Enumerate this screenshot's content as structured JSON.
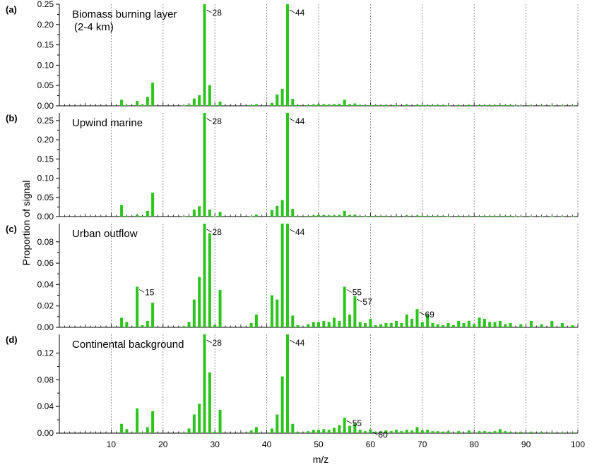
{
  "figure": {
    "xlabel": "m/z",
    "ylabel": "Proportion of signal",
    "bar_color": "#2ec41e",
    "x_ticks": [
      "10",
      "20",
      "30",
      "40",
      "50",
      "60",
      "70",
      "80",
      "90",
      "100"
    ]
  },
  "chart_data": [
    {
      "type": "bar",
      "panel_label": "(a)",
      "title_lines": [
        "Biomass burning layer",
        "(2-4 km)"
      ],
      "xlim": [
        0,
        100
      ],
      "ylim": [
        0,
        0.25
      ],
      "y_ticks": [
        "0.00",
        "0.05",
        "0.10",
        "0.15",
        "0.20",
        "0.25"
      ],
      "y_tick_values": [
        0,
        0.05,
        0.1,
        0.15,
        0.2,
        0.25
      ],
      "annotations": [
        {
          "mz": 28,
          "text": "28"
        },
        {
          "mz": 44,
          "text": "44"
        }
      ],
      "series": [
        {
          "mz": [
            12,
            13,
            15,
            16,
            17,
            18,
            24,
            25,
            26,
            27,
            28,
            29,
            30,
            31,
            37,
            38,
            41,
            42,
            43,
            44,
            45,
            46,
            48,
            49,
            50,
            51,
            52,
            53,
            54,
            55,
            56,
            57,
            58,
            59,
            60,
            61,
            62,
            63,
            65,
            67,
            69,
            70,
            71,
            72,
            73,
            74,
            75,
            77,
            79,
            81,
            82,
            83,
            84,
            85,
            86,
            87,
            88,
            89,
            91,
            93,
            95,
            97,
            99
          ],
          "values": [
            0.015,
            0.002,
            0.012,
            0.003,
            0.022,
            0.057,
            0.001,
            0.003,
            0.018,
            0.026,
            0.26,
            0.051,
            0.002,
            0.01,
            0.002,
            0.004,
            0.007,
            0.028,
            0.042,
            0.26,
            0.017,
            0.002,
            0.002,
            0.003,
            0.004,
            0.004,
            0.003,
            0.004,
            0.005,
            0.015,
            0.004,
            0.006,
            0.002,
            0.002,
            0.002,
            0.002,
            0.002,
            0.002,
            0.002,
            0.003,
            0.003,
            0.002,
            0.002,
            0.002,
            0.002,
            0.002,
            0.001,
            0.002,
            0.002,
            0.002,
            0.002,
            0.002,
            0.002,
            0.002,
            0.002,
            0.002,
            0.001,
            0.001,
            0.001,
            0.001,
            0.001,
            0.001,
            0.001
          ]
        }
      ]
    },
    {
      "type": "bar",
      "panel_label": "(b)",
      "title_lines": [
        "Upwind marine"
      ],
      "xlim": [
        0,
        100
      ],
      "ylim": [
        0,
        0.27
      ],
      "y_ticks": [
        "0.00",
        "0.05",
        "0.10",
        "0.15",
        "0.20",
        "0.25"
      ],
      "y_tick_values": [
        0,
        0.05,
        0.1,
        0.15,
        0.2,
        0.25
      ],
      "annotations": [
        {
          "mz": 28,
          "text": "28"
        },
        {
          "mz": 44,
          "text": "44"
        }
      ],
      "series": [
        {
          "mz": [
            12,
            13,
            15,
            16,
            17,
            18,
            24,
            25,
            26,
            27,
            28,
            29,
            30,
            31,
            37,
            38,
            41,
            42,
            43,
            44,
            45,
            46,
            48,
            49,
            50,
            51,
            52,
            53,
            54,
            55,
            56,
            57,
            58,
            59,
            60,
            61,
            62,
            63,
            65,
            67,
            69,
            70,
            71,
            72,
            73,
            74,
            75,
            77,
            79,
            81,
            82,
            83,
            84,
            85,
            86,
            87,
            88,
            89,
            91,
            93,
            95,
            97,
            99
          ],
          "values": [
            0.03,
            0.002,
            0.004,
            0.002,
            0.015,
            0.062,
            0.001,
            0.002,
            0.018,
            0.027,
            0.28,
            0.018,
            0.001,
            0.012,
            0.001,
            0.005,
            0.017,
            0.028,
            0.043,
            0.28,
            0.02,
            0.002,
            0.002,
            0.003,
            0.004,
            0.004,
            0.003,
            0.003,
            0.004,
            0.015,
            0.004,
            0.005,
            0.002,
            0.001,
            0.002,
            0.002,
            0.002,
            0.002,
            0.002,
            0.003,
            0.003,
            0.002,
            0.002,
            0.002,
            0.002,
            0.002,
            0.001,
            0.002,
            0.002,
            0.002,
            0.002,
            0.002,
            0.002,
            0.002,
            0.002,
            0.002,
            0.001,
            0.001,
            0.001,
            0.001,
            0.001,
            0.001,
            0.001
          ]
        }
      ]
    },
    {
      "type": "bar",
      "panel_label": "(c)",
      "title_lines": [
        "Urban outflow"
      ],
      "xlim": [
        0,
        100
      ],
      "ylim": [
        0,
        0.097
      ],
      "y_ticks": [
        "0.00",
        "0.02",
        "0.04",
        "0.06",
        "0.08"
      ],
      "y_tick_values": [
        0,
        0.02,
        0.04,
        0.06,
        0.08
      ],
      "annotations": [
        {
          "mz": 15,
          "text": "15"
        },
        {
          "mz": 28,
          "text": "28"
        },
        {
          "mz": 44,
          "text": "44"
        },
        {
          "mz": 55,
          "text": "55"
        },
        {
          "mz": 57,
          "text": "57"
        },
        {
          "mz": 69,
          "text": "69"
        }
      ],
      "series": [
        {
          "mz": [
            12,
            13,
            15,
            16,
            17,
            18,
            24,
            25,
            26,
            27,
            28,
            29,
            30,
            31,
            37,
            38,
            41,
            42,
            43,
            44,
            45,
            46,
            48,
            49,
            50,
            51,
            52,
            53,
            54,
            55,
            56,
            57,
            58,
            59,
            60,
            61,
            62,
            63,
            64,
            65,
            66,
            67,
            68,
            69,
            70,
            71,
            72,
            73,
            74,
            75,
            76,
            77,
            78,
            79,
            80,
            81,
            82,
            83,
            84,
            85,
            86,
            87,
            89,
            91,
            93,
            95,
            97,
            99
          ],
          "values": [
            0.009,
            0.005,
            0.038,
            0.002,
            0.006,
            0.023,
            0.001,
            0.005,
            0.026,
            0.047,
            0.1,
            0.088,
            0.002,
            0.035,
            0.004,
            0.012,
            0.03,
            0.026,
            0.097,
            0.1,
            0.011,
            0.002,
            0.003,
            0.005,
            0.005,
            0.006,
            0.005,
            0.009,
            0.006,
            0.038,
            0.012,
            0.029,
            0.005,
            0.004,
            0.008,
            0.002,
            0.003,
            0.004,
            0.004,
            0.006,
            0.004,
            0.012,
            0.008,
            0.017,
            0.005,
            0.012,
            0.004,
            0.003,
            0.002,
            0.004,
            0.002,
            0.006,
            0.004,
            0.006,
            0.003,
            0.009,
            0.008,
            0.005,
            0.005,
            0.006,
            0.003,
            0.004,
            0.003,
            0.006,
            0.003,
            0.006,
            0.004,
            0.002
          ]
        }
      ]
    },
    {
      "type": "bar",
      "panel_label": "(d)",
      "title_lines": [
        "Continental background"
      ],
      "xlim": [
        0,
        100
      ],
      "ylim": [
        0,
        0.148
      ],
      "y_ticks": [
        "0.00",
        "0.04",
        "0.08",
        "0.12"
      ],
      "y_tick_values": [
        0,
        0.04,
        0.08,
        0.12
      ],
      "annotations": [
        {
          "mz": 28,
          "text": "28"
        },
        {
          "mz": 44,
          "text": "44"
        },
        {
          "mz": 55,
          "text": "55"
        },
        {
          "mz": 60,
          "text": "60"
        }
      ],
      "series": [
        {
          "mz": [
            12,
            13,
            15,
            16,
            17,
            18,
            24,
            25,
            26,
            27,
            28,
            29,
            30,
            31,
            37,
            38,
            41,
            42,
            43,
            44,
            45,
            46,
            48,
            49,
            50,
            51,
            52,
            53,
            54,
            55,
            56,
            57,
            58,
            59,
            60,
            61,
            62,
            63,
            64,
            65,
            66,
            67,
            68,
            69,
            70,
            71,
            72,
            73,
            74,
            75,
            77,
            79,
            81,
            82,
            83,
            84,
            85,
            86,
            87,
            89,
            91,
            93,
            95,
            97,
            99
          ],
          "values": [
            0.014,
            0.006,
            0.037,
            0.001,
            0.009,
            0.033,
            0.001,
            0.007,
            0.028,
            0.044,
            0.15,
            0.091,
            0.002,
            0.035,
            0.004,
            0.009,
            0.007,
            0.028,
            0.085,
            0.15,
            0.014,
            0.002,
            0.003,
            0.005,
            0.005,
            0.006,
            0.005,
            0.008,
            0.012,
            0.023,
            0.011,
            0.015,
            0.005,
            0.003,
            0.006,
            0.002,
            0.003,
            0.004,
            0.003,
            0.005,
            0.003,
            0.005,
            0.004,
            0.009,
            0.004,
            0.005,
            0.003,
            0.003,
            0.002,
            0.003,
            0.003,
            0.004,
            0.003,
            0.003,
            0.002,
            0.003,
            0.006,
            0.003,
            0.002,
            0.002,
            0.002,
            0.002,
            0.001,
            0.001,
            0.001
          ]
        }
      ]
    }
  ]
}
